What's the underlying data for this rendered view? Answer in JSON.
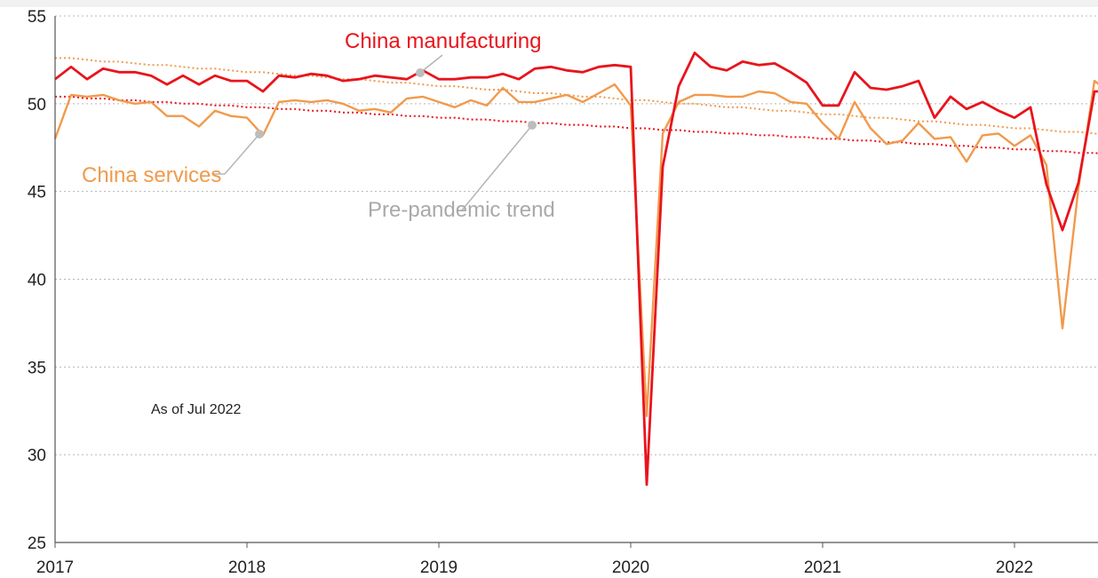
{
  "chart_data": {
    "type": "line",
    "title": "",
    "xlabel": "",
    "ylabel": "",
    "ylim": [
      25,
      55
    ],
    "yticks": [
      "25",
      "30",
      "35",
      "40",
      "45",
      "50",
      "55"
    ],
    "xlim": [
      "2017-01",
      "2022-07"
    ],
    "xticks": [
      "2017",
      "2018",
      "2019",
      "2020",
      "2021",
      "2022"
    ],
    "grid": "horizontal dotted",
    "legend": "inline labels",
    "annotation": "As of Jul 2022",
    "months": [
      "2017-01",
      "2017-02",
      "2017-03",
      "2017-04",
      "2017-05",
      "2017-06",
      "2017-07",
      "2017-08",
      "2017-09",
      "2017-10",
      "2017-11",
      "2017-12",
      "2018-01",
      "2018-02",
      "2018-03",
      "2018-04",
      "2018-05",
      "2018-06",
      "2018-07",
      "2018-08",
      "2018-09",
      "2018-10",
      "2018-11",
      "2018-12",
      "2019-01",
      "2019-02",
      "2019-03",
      "2019-04",
      "2019-05",
      "2019-06",
      "2019-07",
      "2019-08",
      "2019-09",
      "2019-10",
      "2019-11",
      "2019-12",
      "2020-01",
      "2020-02",
      "2020-03",
      "2020-04",
      "2020-05",
      "2020-06",
      "2020-07",
      "2020-08",
      "2020-09",
      "2020-10",
      "2020-11",
      "2020-12",
      "2021-01",
      "2021-02",
      "2021-03",
      "2021-04",
      "2021-05",
      "2021-06",
      "2021-07",
      "2021-08",
      "2021-09",
      "2021-10",
      "2021-11",
      "2021-12",
      "2022-01",
      "2022-02",
      "2022-03",
      "2022-04",
      "2022-05",
      "2022-06",
      "2022-07"
    ],
    "series": [
      {
        "name": "China manufacturing",
        "color": "#e8141c",
        "style": "solid",
        "values": [
          51.4,
          52.1,
          51.4,
          52.0,
          51.8,
          51.8,
          51.6,
          51.1,
          51.6,
          51.1,
          51.6,
          51.3,
          51.3,
          50.7,
          51.6,
          51.5,
          51.7,
          51.6,
          51.3,
          51.4,
          51.6,
          51.5,
          51.4,
          51.9,
          51.4,
          51.4,
          51.5,
          51.5,
          51.7,
          51.4,
          52.0,
          52.1,
          51.9,
          51.8,
          52.1,
          52.2,
          52.1,
          28.3,
          46.4,
          51.0,
          52.9,
          52.1,
          51.9,
          52.4,
          52.2,
          52.3,
          51.8,
          51.2,
          49.9,
          49.9,
          51.8,
          50.9,
          50.8,
          51.0,
          51.3,
          49.2,
          50.4,
          49.7,
          50.1,
          49.6,
          49.2,
          49.8,
          45.4,
          42.8,
          45.5,
          50.7,
          50.7
        ]
      },
      {
        "name": "China services",
        "color": "#f19a4c",
        "style": "solid",
        "values": [
          48.0,
          50.5,
          50.4,
          50.5,
          50.2,
          50.0,
          50.1,
          49.3,
          49.3,
          48.7,
          49.6,
          49.3,
          49.2,
          48.2,
          50.1,
          50.2,
          50.1,
          50.2,
          50.0,
          49.6,
          49.7,
          49.5,
          50.3,
          50.4,
          50.1,
          49.8,
          50.2,
          49.9,
          50.9,
          50.1,
          50.1,
          50.3,
          50.5,
          50.1,
          50.6,
          51.1,
          49.9,
          32.2,
          48.3,
          50.1,
          50.5,
          50.5,
          50.4,
          50.4,
          50.7,
          50.6,
          50.1,
          50.0,
          48.9,
          48.0,
          50.1,
          48.6,
          47.7,
          47.9,
          48.9,
          48.0,
          48.1,
          46.7,
          48.2,
          48.3,
          47.6,
          48.2,
          46.5,
          37.2,
          45.2,
          51.3,
          50.6
        ]
      },
      {
        "name": "Pre-pandemic trend",
        "color": "#f19a4c",
        "style": "dotted",
        "values": [
          52.6,
          52.6,
          52.5,
          52.4,
          52.4,
          52.3,
          52.2,
          52.2,
          52.1,
          52.0,
          52.0,
          51.9,
          51.8,
          51.8,
          51.7,
          51.6,
          51.6,
          51.5,
          51.4,
          51.4,
          51.3,
          51.2,
          51.2,
          51.1,
          51.0,
          51.0,
          50.9,
          50.8,
          50.8,
          50.7,
          50.6,
          50.6,
          50.5,
          50.4,
          50.4,
          50.3,
          50.2,
          50.2,
          50.1,
          50.0,
          50.0,
          49.9,
          49.8,
          49.8,
          49.7,
          49.6,
          49.6,
          49.5,
          49.4,
          49.4,
          49.3,
          49.2,
          49.2,
          49.1,
          49.0,
          49.0,
          48.9,
          48.8,
          48.8,
          48.7,
          48.6,
          48.6,
          48.5,
          48.4,
          48.4,
          48.3,
          48.2
        ]
      },
      {
        "name": "",
        "color": "#e8141c",
        "style": "dotted",
        "values": [
          50.4,
          50.4,
          50.3,
          50.3,
          50.2,
          50.2,
          50.1,
          50.1,
          50.0,
          50.0,
          49.9,
          49.9,
          49.8,
          49.8,
          49.7,
          49.7,
          49.6,
          49.6,
          49.5,
          49.5,
          49.4,
          49.4,
          49.3,
          49.3,
          49.2,
          49.2,
          49.1,
          49.1,
          49.0,
          49.0,
          48.9,
          48.9,
          48.8,
          48.8,
          48.7,
          48.7,
          48.6,
          48.6,
          48.5,
          48.5,
          48.4,
          48.4,
          48.3,
          48.3,
          48.2,
          48.2,
          48.1,
          48.1,
          48.0,
          48.0,
          47.9,
          47.9,
          47.8,
          47.8,
          47.7,
          47.7,
          47.6,
          47.6,
          47.5,
          47.5,
          47.4,
          47.4,
          47.3,
          47.3,
          47.2,
          47.2,
          47.1
        ]
      }
    ]
  }
}
